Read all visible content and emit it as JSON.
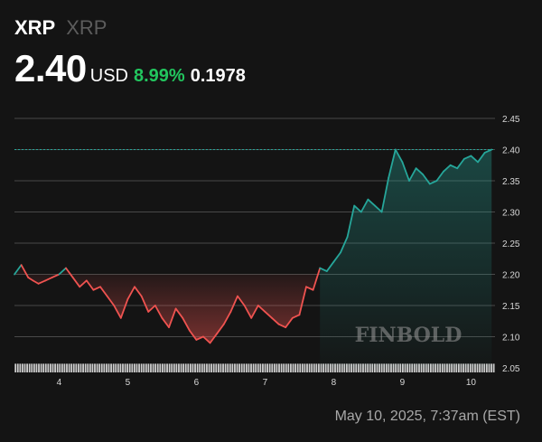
{
  "header": {
    "symbol": "XRP",
    "name": "XRP",
    "price": "2.40",
    "currency": "USD",
    "change_pct": "8.99%",
    "change_abs": "0.1978"
  },
  "watermark": "FINBOLD",
  "footer": {
    "timestamp": "May 10, 2025, 7:37am (EST)"
  },
  "colors": {
    "background": "#141414",
    "up": "#26a69a",
    "down": "#ef5350",
    "positive_text": "#22c55e",
    "grid": "#8a8a8a",
    "volume": "#cfcfcf"
  },
  "chart_data": {
    "type": "line",
    "title": "",
    "xlabel": "",
    "ylabel": "",
    "x_ticks": [
      "4",
      "5",
      "6",
      "7",
      "8",
      "9",
      "10"
    ],
    "x_range": [
      3.35,
      10.35
    ],
    "y_ticks": [
      "2.45",
      "2.40",
      "2.35",
      "2.30",
      "2.25",
      "2.20",
      "2.15",
      "2.10",
      "2.05"
    ],
    "y_range": [
      2.05,
      2.45
    ],
    "reference_value": 2.4,
    "reference_label": "2.40",
    "series": [
      {
        "x": [
          3.35,
          3.45,
          3.55,
          3.62,
          3.7,
          3.8,
          3.9,
          4.0,
          4.1,
          4.2,
          4.3,
          4.4,
          4.5,
          4.6,
          4.7,
          4.8,
          4.9,
          5.0,
          5.1,
          5.2,
          5.3,
          5.4,
          5.5,
          5.6,
          5.7,
          5.8,
          5.9,
          6.0,
          6.1,
          6.2,
          6.3,
          6.4,
          6.5,
          6.6,
          6.7,
          6.8,
          6.9,
          7.0,
          7.1,
          7.2,
          7.3,
          7.4,
          7.5,
          7.6,
          7.7,
          7.8,
          7.9,
          8.0,
          8.1,
          8.2,
          8.3,
          8.4,
          8.5,
          8.6,
          8.7,
          8.8,
          8.9,
          9.0,
          9.1,
          9.2,
          9.3,
          9.4,
          9.5,
          9.6,
          9.7,
          9.8,
          9.9,
          10.0,
          10.1,
          10.2,
          10.3
        ],
        "y": [
          2.2,
          2.215,
          2.195,
          2.19,
          2.185,
          2.19,
          2.195,
          2.2,
          2.21,
          2.195,
          2.18,
          2.19,
          2.175,
          2.18,
          2.165,
          2.15,
          2.13,
          2.16,
          2.18,
          2.165,
          2.14,
          2.15,
          2.13,
          2.115,
          2.145,
          2.13,
          2.11,
          2.095,
          2.1,
          2.09,
          2.105,
          2.12,
          2.14,
          2.165,
          2.15,
          2.13,
          2.15,
          2.14,
          2.13,
          2.12,
          2.115,
          2.13,
          2.135,
          2.18,
          2.175,
          2.21,
          2.205,
          2.22,
          2.235,
          2.26,
          2.31,
          2.3,
          2.32,
          2.31,
          2.3,
          2.355,
          2.4,
          2.38,
          2.35,
          2.37,
          2.36,
          2.345,
          2.35,
          2.365,
          2.375,
          2.37,
          2.385,
          2.39,
          2.38,
          2.395,
          2.4
        ]
      }
    ],
    "volume": {
      "x_start": 3.35,
      "x_end": 10.35,
      "values": [
        3,
        3,
        3,
        3,
        3,
        3,
        3,
        3,
        3,
        3,
        3,
        3,
        3,
        3,
        3,
        3,
        3,
        3,
        3,
        3,
        3,
        3,
        3,
        3,
        3,
        3,
        3,
        3,
        3,
        3,
        3,
        3,
        3,
        3,
        3,
        3,
        3,
        3,
        3,
        3,
        3,
        3,
        3,
        3,
        3,
        3,
        3,
        3,
        3,
        3,
        3,
        3,
        3,
        3,
        3,
        3,
        3,
        3,
        3,
        3,
        3,
        3,
        3,
        3,
        3,
        3,
        3,
        3,
        3,
        3,
        3,
        3,
        3,
        3,
        3,
        3,
        3,
        3,
        3,
        3,
        3,
        3,
        3,
        3,
        3,
        3,
        3,
        3,
        3,
        3,
        3,
        3,
        3,
        3,
        3,
        3,
        3,
        3,
        3,
        3,
        3,
        3,
        3,
        3,
        3,
        3,
        3,
        3,
        3,
        3,
        3,
        3,
        3,
        3,
        3,
        3,
        3,
        3,
        3,
        3,
        3,
        3,
        3,
        3,
        3,
        3,
        3,
        3,
        3,
        3,
        3,
        3,
        3,
        3,
        3,
        3,
        3,
        3,
        3,
        3,
        3,
        3,
        3,
        3,
        3,
        3,
        3,
        3,
        3,
        3,
        3,
        3,
        3,
        3,
        3,
        3,
        3,
        3,
        3,
        3,
        3,
        3,
        3,
        3,
        3,
        3,
        3,
        3,
        3,
        3,
        3,
        3,
        3,
        3,
        3,
        3,
        3,
        3,
        3,
        3,
        3,
        3,
        3,
        3,
        3,
        3,
        3,
        3,
        3,
        3,
        3,
        3,
        3,
        3,
        3,
        3,
        3,
        3,
        3,
        3,
        3,
        3,
        3,
        3,
        3,
        3
      ]
    }
  }
}
